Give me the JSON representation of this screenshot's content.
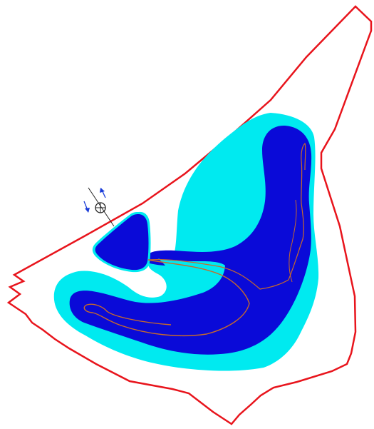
{
  "map": {
    "colors": {
      "background": "#ffffff",
      "boundary": "#e8141c",
      "outer_zone": "#00eaf0",
      "inner_zone": "#0a0ad8",
      "flow_line": "#c86a2a",
      "inlet_arrow": "#1a3cd8",
      "inlet_marker": "#222222"
    },
    "icons": {
      "inlet_marker": "circle-cross-icon",
      "arrow_in": "arrow-down-icon",
      "arrow_out": "arrow-up-icon"
    }
  }
}
